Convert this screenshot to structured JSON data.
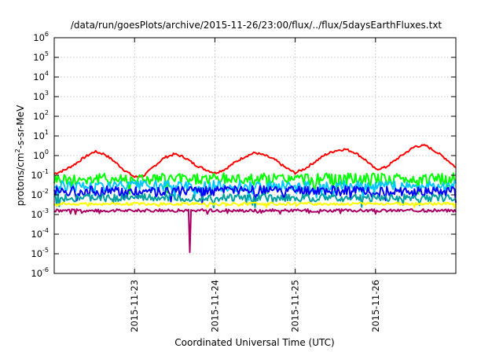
{
  "chart_data": {
    "type": "line",
    "title": "/data/run/goesPlots/archive/2015-11-26/23:00/flux/../flux/5daysEarthFluxes.txt",
    "xlabel": "Coordinated Universal Time (UTC)",
    "ylabel": "protons/cm2-s-sr-MeV",
    "ylabel_parts": {
      "base": "protons/cm",
      "sup": "2",
      "rest": "-s-sr-MeV"
    },
    "yscale": "log",
    "ylim": [
      1e-06,
      1000000.0
    ],
    "yticks": [
      {
        "value": 1e-06,
        "base": "10",
        "exp": "-6"
      },
      {
        "value": 1e-05,
        "base": "10",
        "exp": "-5"
      },
      {
        "value": 0.0001,
        "base": "10",
        "exp": "-4"
      },
      {
        "value": 0.001,
        "base": "10",
        "exp": "-3"
      },
      {
        "value": 0.01,
        "base": "10",
        "exp": "-2"
      },
      {
        "value": 0.1,
        "base": "10",
        "exp": "-1"
      },
      {
        "value": 1.0,
        "base": "10",
        "exp": "0"
      },
      {
        "value": 10.0,
        "base": "10",
        "exp": "1"
      },
      {
        "value": 100.0,
        "base": "10",
        "exp": "2"
      },
      {
        "value": 1000.0,
        "base": "10",
        "exp": "3"
      },
      {
        "value": 10000.0,
        "base": "10",
        "exp": "4"
      },
      {
        "value": 100000.0,
        "base": "10",
        "exp": "5"
      },
      {
        "value": 1000000.0,
        "base": "10",
        "exp": "6"
      }
    ],
    "xlim": [
      "2015-11-22 00:00",
      "2015-11-27 00:00"
    ],
    "xticks": [
      {
        "value": "2015-11-23",
        "label": "2015-11-23"
      },
      {
        "value": "2015-11-24",
        "label": "2015-11-24"
      },
      {
        "value": "2015-11-25",
        "label": "2015-11-25"
      },
      {
        "value": "2015-11-26",
        "label": "2015-11-26"
      }
    ],
    "grid": true,
    "legend": "none",
    "series": [
      {
        "color": "#ff0000",
        "x": [
          "2015-11-22 00:00",
          "2015-11-22 03:00",
          "2015-11-22 06:00",
          "2015-11-22 09:00",
          "2015-11-22 12:00",
          "2015-11-22 15:00",
          "2015-11-22 18:00",
          "2015-11-22 21:00",
          "2015-11-23 00:00",
          "2015-11-23 03:00",
          "2015-11-23 06:00",
          "2015-11-23 09:00",
          "2015-11-23 12:00",
          "2015-11-23 15:00",
          "2015-11-23 18:00",
          "2015-11-23 21:00",
          "2015-11-24 00:00",
          "2015-11-24 03:00",
          "2015-11-24 06:00",
          "2015-11-24 09:00",
          "2015-11-24 12:00",
          "2015-11-24 15:00",
          "2015-11-24 18:00",
          "2015-11-24 21:00",
          "2015-11-25 00:00",
          "2015-11-25 03:00",
          "2015-11-25 06:00",
          "2015-11-25 09:00",
          "2015-11-25 12:00",
          "2015-11-25 15:00",
          "2015-11-25 18:00",
          "2015-11-25 21:00",
          "2015-11-26 00:00",
          "2015-11-26 03:00",
          "2015-11-26 06:00",
          "2015-11-26 09:00",
          "2015-11-26 12:00",
          "2015-11-26 15:00",
          "2015-11-26 18:00",
          "2015-11-26 21:00",
          "2015-11-27 00:00"
        ],
        "values": [
          0.12,
          0.18,
          0.35,
          0.8,
          1.6,
          1.2,
          0.5,
          0.18,
          0.08,
          0.1,
          0.3,
          0.8,
          1.2,
          0.8,
          0.35,
          0.2,
          0.13,
          0.2,
          0.45,
          0.9,
          1.4,
          1.0,
          0.6,
          0.25,
          0.13,
          0.22,
          0.5,
          1.1,
          1.8,
          2.1,
          1.4,
          0.6,
          0.2,
          0.25,
          0.6,
          1.4,
          3.0,
          3.2,
          1.6,
          0.7,
          0.25
        ]
      },
      {
        "color": "#00ff00",
        "base": 0.065,
        "spread": 0.6
      },
      {
        "color": "#00c8ff",
        "base": 0.028,
        "spread": 0.55
      },
      {
        "color": "#0000ff",
        "base": 0.016,
        "spread": 0.5
      },
      {
        "color": "#00a0a0",
        "base": 0.007,
        "spread": 0.4
      },
      {
        "color": "#ffff00",
        "base": 0.0035,
        "spread": 0.15
      },
      {
        "color": "#aa0066",
        "base": 0.0016,
        "spread": 0.15,
        "dip": {
          "x": "2015-11-23 16:30",
          "value": 1.2e-05
        }
      }
    ]
  }
}
